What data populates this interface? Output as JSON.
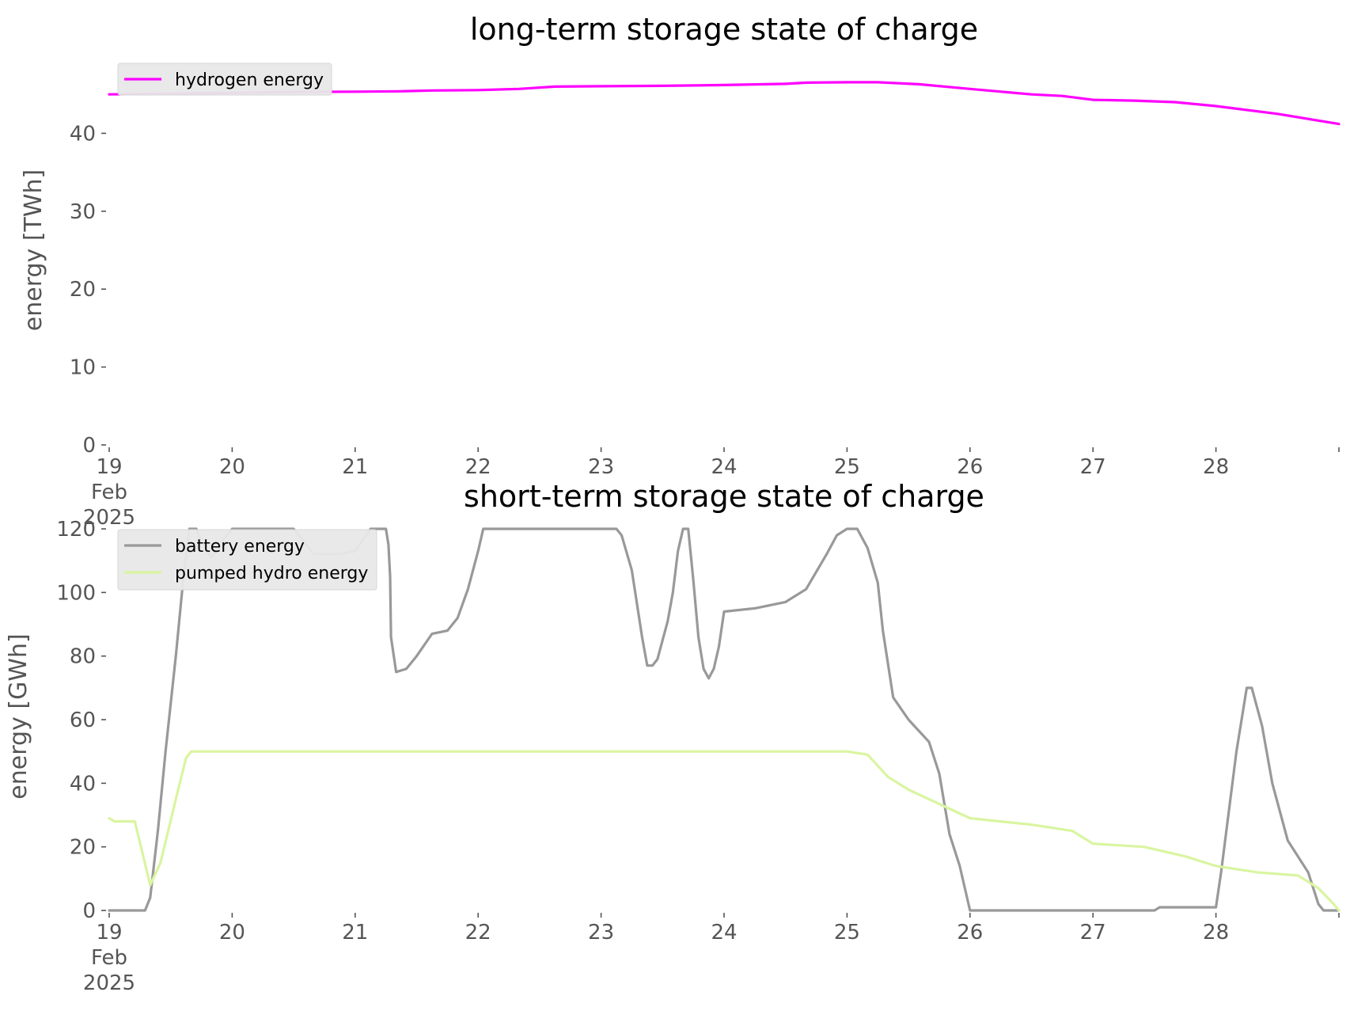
{
  "chart_data": [
    {
      "type": "line",
      "title": "long-term storage state of charge",
      "xlabel": "",
      "ylabel": "energy [TWh]",
      "ylim": [
        0,
        50
      ],
      "xlim": [
        "2025-02-19",
        "2025-03-01"
      ],
      "grid": false,
      "legend_position": "top-left",
      "x_ticks": [
        {
          "x": "2025-02-19",
          "label": "19\nFeb\n2025"
        },
        {
          "x": "2025-02-20",
          "label": "20"
        },
        {
          "x": "2025-02-21",
          "label": "21"
        },
        {
          "x": "2025-02-22",
          "label": "22"
        },
        {
          "x": "2025-02-23",
          "label": "23"
        },
        {
          "x": "2025-02-24",
          "label": "24"
        },
        {
          "x": "2025-02-25",
          "label": "25"
        },
        {
          "x": "2025-02-26",
          "label": "26"
        },
        {
          "x": "2025-02-27",
          "label": "27"
        },
        {
          "x": "2025-02-28",
          "label": "28"
        },
        {
          "x": "2025-03-01",
          "label": ""
        }
      ],
      "y_ticks": [
        0,
        10,
        20,
        30,
        40
      ],
      "series": [
        {
          "name": "hydrogen energy",
          "color": "#ff00ff",
          "points": [
            [
              "2025-02-19 00:00",
              45.0
            ],
            [
              "2025-02-19 12:00",
              45.1
            ],
            [
              "2025-02-20 00:00",
              45.2
            ],
            [
              "2025-02-20 12:00",
              45.3
            ],
            [
              "2025-02-21 00:00",
              45.35
            ],
            [
              "2025-02-21 09:00",
              45.4
            ],
            [
              "2025-02-21 15:00",
              45.5
            ],
            [
              "2025-02-22 00:00",
              45.55
            ],
            [
              "2025-02-22 08:00",
              45.7
            ],
            [
              "2025-02-22 15:00",
              46.0
            ],
            [
              "2025-02-23 00:00",
              46.05
            ],
            [
              "2025-02-23 12:00",
              46.1
            ],
            [
              "2025-02-24 00:00",
              46.2
            ],
            [
              "2025-02-24 12:00",
              46.35
            ],
            [
              "2025-02-24 16:00",
              46.5
            ],
            [
              "2025-02-25 00:00",
              46.55
            ],
            [
              "2025-02-25 06:00",
              46.55
            ],
            [
              "2025-02-25 14:00",
              46.3
            ],
            [
              "2025-02-26 00:00",
              45.7
            ],
            [
              "2025-02-26 12:00",
              45.0
            ],
            [
              "2025-02-26 18:00",
              44.8
            ],
            [
              "2025-02-27 00:00",
              44.3
            ],
            [
              "2025-02-27 08:00",
              44.2
            ],
            [
              "2025-02-27 16:00",
              44.0
            ],
            [
              "2025-02-28 00:00",
              43.5
            ],
            [
              "2025-02-28 12:00",
              42.5
            ],
            [
              "2025-03-01 00:00",
              41.2
            ]
          ]
        }
      ]
    },
    {
      "type": "line",
      "title": "short-term storage state of charge",
      "xlabel": "",
      "ylabel": "energy [GWh]",
      "ylim": [
        0,
        122
      ],
      "xlim": [
        "2025-02-19",
        "2025-03-01"
      ],
      "grid": false,
      "legend_position": "top-left",
      "x_ticks": [
        {
          "x": "2025-02-19",
          "label": "19\nFeb\n2025"
        },
        {
          "x": "2025-02-20",
          "label": "20"
        },
        {
          "x": "2025-02-21",
          "label": "21"
        },
        {
          "x": "2025-02-22",
          "label": "22"
        },
        {
          "x": "2025-02-23",
          "label": "23"
        },
        {
          "x": "2025-02-24",
          "label": "24"
        },
        {
          "x": "2025-02-25",
          "label": "25"
        },
        {
          "x": "2025-02-26",
          "label": "26"
        },
        {
          "x": "2025-02-27",
          "label": "27"
        },
        {
          "x": "2025-02-28",
          "label": "28"
        },
        {
          "x": "2025-03-01",
          "label": ""
        }
      ],
      "y_ticks": [
        0,
        20,
        40,
        60,
        80,
        100,
        120
      ],
      "series": [
        {
          "name": "battery energy",
          "color": "#999999",
          "points": [
            [
              "2025-02-19 00:00",
              0
            ],
            [
              "2025-02-19 07:00",
              0
            ],
            [
              "2025-02-19 08:00",
              4
            ],
            [
              "2025-02-19 09:30",
              25
            ],
            [
              "2025-02-19 11:00",
              50
            ],
            [
              "2025-02-19 13:00",
              80
            ],
            [
              "2025-02-19 14:30",
              105
            ],
            [
              "2025-02-19 15:40",
              120
            ],
            [
              "2025-02-19 17:00",
              120
            ],
            [
              "2025-02-19 18:00",
              116
            ],
            [
              "2025-02-19 20:00",
              111
            ],
            [
              "2025-02-19 22:00",
              116
            ],
            [
              "2025-02-20 00:00",
              120
            ],
            [
              "2025-02-20 12:00",
              120
            ],
            [
              "2025-02-20 16:00",
              112
            ],
            [
              "2025-02-20 21:00",
              112
            ],
            [
              "2025-02-21 00:00",
              113
            ],
            [
              "2025-02-21 03:00",
              120
            ],
            [
              "2025-02-21 06:00",
              120
            ],
            [
              "2025-02-21 06:30",
              115
            ],
            [
              "2025-02-21 06:50",
              105
            ],
            [
              "2025-02-21 07:00",
              86
            ],
            [
              "2025-02-21 08:00",
              75
            ],
            [
              "2025-02-21 10:00",
              76
            ],
            [
              "2025-02-21 12:00",
              80
            ],
            [
              "2025-02-21 15:00",
              87
            ],
            [
              "2025-02-21 18:00",
              88
            ],
            [
              "2025-02-21 20:00",
              92
            ],
            [
              "2025-02-21 22:00",
              101
            ],
            [
              "2025-02-22 00:00",
              113
            ],
            [
              "2025-02-22 01:00",
              120
            ],
            [
              "2025-02-23 03:00",
              120
            ],
            [
              "2025-02-23 04:00",
              118
            ],
            [
              "2025-02-23 06:00",
              107
            ],
            [
              "2025-02-23 08:00",
              86
            ],
            [
              "2025-02-23 09:00",
              77
            ],
            [
              "2025-02-23 10:00",
              77
            ],
            [
              "2025-02-23 11:00",
              79
            ],
            [
              "2025-02-23 13:00",
              91
            ],
            [
              "2025-02-23 14:00",
              100
            ],
            [
              "2025-02-23 15:00",
              113
            ],
            [
              "2025-02-23 16:00",
              120
            ],
            [
              "2025-02-23 17:00",
              120
            ],
            [
              "2025-02-23 18:00",
              104
            ],
            [
              "2025-02-23 19:00",
              86
            ],
            [
              "2025-02-23 20:00",
              76
            ],
            [
              "2025-02-23 21:00",
              73
            ],
            [
              "2025-02-23 22:00",
              76
            ],
            [
              "2025-02-23 23:00",
              83
            ],
            [
              "2025-02-24 00:00",
              94
            ],
            [
              "2025-02-24 06:00",
              95
            ],
            [
              "2025-02-24 12:00",
              97
            ],
            [
              "2025-02-24 16:00",
              101
            ],
            [
              "2025-02-24 20:00",
              112
            ],
            [
              "2025-02-24 22:00",
              118
            ],
            [
              "2025-02-25 00:00",
              120
            ],
            [
              "2025-02-25 02:00",
              120
            ],
            [
              "2025-02-25 04:00",
              114
            ],
            [
              "2025-02-25 06:00",
              103
            ],
            [
              "2025-02-25 07:00",
              88
            ],
            [
              "2025-02-25 09:00",
              67
            ],
            [
              "2025-02-25 12:00",
              60
            ],
            [
              "2025-02-25 16:00",
              53
            ],
            [
              "2025-02-25 18:00",
              43
            ],
            [
              "2025-02-25 20:00",
              24
            ],
            [
              "2025-02-25 22:00",
              14
            ],
            [
              "2025-02-26 00:00",
              0
            ],
            [
              "2025-02-27 12:00",
              0
            ],
            [
              "2025-02-27 13:00",
              1
            ],
            [
              "2025-02-28 00:00",
              1
            ],
            [
              "2025-02-28 01:00",
              12
            ],
            [
              "2025-02-28 04:00",
              50
            ],
            [
              "2025-02-28 06:00",
              70
            ],
            [
              "2025-02-28 07:00",
              70
            ],
            [
              "2025-02-28 09:00",
              58
            ],
            [
              "2025-02-28 11:00",
              40
            ],
            [
              "2025-02-28 14:00",
              22
            ],
            [
              "2025-02-28 18:00",
              12
            ],
            [
              "2025-02-28 20:00",
              2
            ],
            [
              "2025-02-28 21:00",
              0
            ],
            [
              "2025-03-01 00:00",
              0
            ]
          ]
        },
        {
          "name": "pumped hydro energy",
          "color": "#d9f5a0",
          "points": [
            [
              "2025-02-19 00:00",
              29
            ],
            [
              "2025-02-19 01:00",
              28
            ],
            [
              "2025-02-19 05:00",
              28
            ],
            [
              "2025-02-19 08:00",
              8
            ],
            [
              "2025-02-19 10:00",
              15
            ],
            [
              "2025-02-19 13:00",
              35
            ],
            [
              "2025-02-19 15:00",
              48
            ],
            [
              "2025-02-19 16:00",
              50
            ],
            [
              "2025-02-25 00:00",
              50
            ],
            [
              "2025-02-25 04:00",
              49
            ],
            [
              "2025-02-25 08:00",
              42
            ],
            [
              "2025-02-25 12:00",
              38
            ],
            [
              "2025-02-25 20:00",
              32
            ],
            [
              "2025-02-26 00:00",
              29
            ],
            [
              "2025-02-26 12:00",
              27
            ],
            [
              "2025-02-26 20:00",
              25
            ],
            [
              "2025-02-27 00:00",
              21
            ],
            [
              "2025-02-27 10:00",
              20
            ],
            [
              "2025-02-27 18:00",
              17
            ],
            [
              "2025-02-28 00:00",
              14
            ],
            [
              "2025-02-28 08:00",
              12
            ],
            [
              "2025-02-28 16:00",
              11
            ],
            [
              "2025-02-28 20:00",
              7
            ],
            [
              "2025-02-28 23:00",
              2
            ],
            [
              "2025-03-01 00:00",
              0
            ]
          ]
        }
      ]
    }
  ]
}
